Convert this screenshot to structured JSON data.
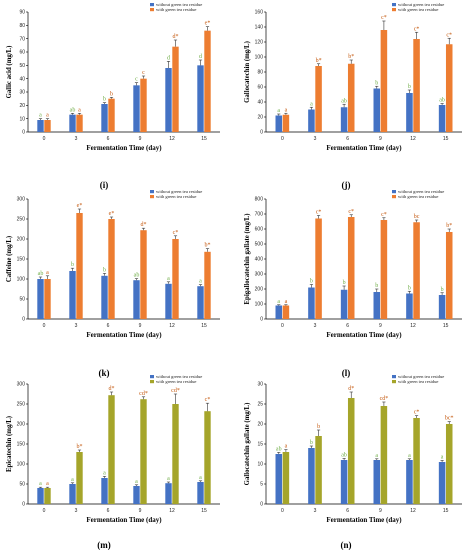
{
  "colors": {
    "without": "#4472c4",
    "with_i": "#ed7d31",
    "with_j": "#ed7d31",
    "with_k": "#ed7d31",
    "with_l": "#ed7d31",
    "with_m": "#a5a52a",
    "with_n": "#a5a52a",
    "axis": "#000000",
    "sig_without": "#70ad47",
    "sig_with": "#c55a11"
  },
  "legend": {
    "without": "without green tea residue",
    "with": "with green tea residue"
  },
  "chart_data": [
    {
      "id": "i",
      "panel_label": "(i)",
      "type": "bar",
      "xlabel": "Fermentation Time (day)",
      "ylabel": "Gallic acid (mg/L)",
      "categories": [
        "0",
        "3",
        "6",
        "9",
        "12",
        "15"
      ],
      "ylim": [
        0,
        90
      ],
      "yticks": [
        0,
        10,
        20,
        30,
        40,
        50,
        60,
        70,
        80,
        90
      ],
      "series": [
        {
          "name": "without green tea residue",
          "values": [
            9,
            13,
            21,
            35,
            48,
            50
          ],
          "errors": [
            1,
            1,
            1,
            2,
            5,
            4
          ],
          "labels": [
            "a",
            "ab",
            "b",
            "c",
            "d",
            "d"
          ]
        },
        {
          "name": "with green tea residue",
          "values": [
            9,
            13,
            25,
            40,
            64,
            76
          ],
          "errors": [
            1,
            1,
            1,
            2,
            5,
            3
          ],
          "labels": [
            "a",
            "a",
            "b",
            "c",
            "d*",
            "e*"
          ]
        }
      ]
    },
    {
      "id": "j",
      "panel_label": "(j)",
      "type": "bar",
      "xlabel": "Fermentation Time (day)",
      "ylabel": "Gallocatechin (mg/L)",
      "categories": [
        "0",
        "3",
        "6",
        "9",
        "12",
        "15"
      ],
      "ylim": [
        0,
        160
      ],
      "yticks": [
        0,
        20,
        40,
        60,
        80,
        100,
        120,
        140,
        160
      ],
      "series": [
        {
          "name": "without green tea residue",
          "values": [
            22,
            30,
            33,
            58,
            52,
            36
          ],
          "errors": [
            2,
            3,
            4,
            3,
            4,
            2
          ],
          "labels": [
            "a",
            "a",
            "ab",
            "b",
            "b",
            "ab"
          ]
        },
        {
          "name": "with green tea residue",
          "values": [
            23,
            88,
            91,
            136,
            124,
            117
          ],
          "errors": [
            2,
            3,
            5,
            12,
            9,
            8
          ],
          "labels": [
            "a",
            "b*",
            "b*",
            "c*",
            "c*",
            "c*"
          ]
        }
      ]
    },
    {
      "id": "k",
      "panel_label": "(k)",
      "type": "bar",
      "xlabel": "Fermentation Time (day)",
      "ylabel": "Caffeine (mg/L)",
      "categories": [
        "0",
        "3",
        "6",
        "9",
        "12",
        "15"
      ],
      "ylim": [
        0,
        300
      ],
      "yticks": [
        0,
        50,
        100,
        150,
        200,
        250,
        300
      ],
      "series": [
        {
          "name": "without green tea residue",
          "values": [
            100,
            120,
            108,
            97,
            88,
            82
          ],
          "errors": [
            5,
            7,
            6,
            4,
            5,
            4
          ],
          "labels": [
            "ab",
            "b",
            "b",
            "ab",
            "a",
            "a"
          ]
        },
        {
          "name": "with green tea residue",
          "values": [
            100,
            265,
            250,
            222,
            200,
            168
          ],
          "errors": [
            8,
            10,
            5,
            5,
            8,
            8
          ],
          "labels": [
            "a",
            "e*",
            "e*",
            "d*",
            "c*",
            "b*"
          ]
        }
      ]
    },
    {
      "id": "l",
      "panel_label": "(l)",
      "type": "bar",
      "xlabel": "Fermentation Time (day)",
      "ylabel": "Epigallocatechin gallate (mg/L)",
      "categories": [
        "0",
        "3",
        "6",
        "9",
        "12",
        "15"
      ],
      "ylim": [
        0,
        800
      ],
      "yticks": [
        0,
        100,
        200,
        300,
        400,
        500,
        600,
        700,
        800
      ],
      "series": [
        {
          "name": "without green tea residue",
          "values": [
            90,
            210,
            195,
            180,
            170,
            160
          ],
          "errors": [
            5,
            20,
            25,
            20,
            15,
            15
          ],
          "labels": [
            "a",
            "b",
            "b",
            "b",
            "b",
            "b"
          ]
        },
        {
          "name": "with green tea residue",
          "values": [
            90,
            670,
            680,
            660,
            645,
            580
          ],
          "errors": [
            5,
            20,
            15,
            15,
            15,
            20
          ],
          "labels": [
            "a",
            "c*",
            "c*",
            "c*",
            "bc",
            "b*"
          ]
        }
      ]
    },
    {
      "id": "m",
      "panel_label": "(m)",
      "type": "bar",
      "xlabel": "Fermentation Time (day)",
      "ylabel": "Epicatechin (mg/L)",
      "categories": [
        "0",
        "3",
        "6",
        "9",
        "12",
        "15"
      ],
      "ylim": [
        0,
        300
      ],
      "yticks": [
        0,
        50,
        100,
        150,
        200,
        250,
        300
      ],
      "series": [
        {
          "name": "without green tea residue",
          "values": [
            40,
            50,
            65,
            45,
            52,
            55
          ],
          "errors": [
            2,
            3,
            4,
            3,
            3,
            3
          ],
          "labels": [
            "a",
            "a",
            "a",
            "a",
            "a",
            "a"
          ]
        },
        {
          "name": "with green tea residue",
          "values": [
            40,
            130,
            272,
            262,
            250,
            232
          ],
          "errors": [
            2,
            5,
            8,
            6,
            25,
            20
          ],
          "labels": [
            "a",
            "b*",
            "d*",
            "cd*",
            "cd*",
            "c*"
          ]
        }
      ]
    },
    {
      "id": "n",
      "panel_label": "(n)",
      "type": "bar",
      "xlabel": "Fermentation Time (day)",
      "ylabel": "Gallocatechin gallate (mg/L)",
      "categories": [
        "0",
        "3",
        "6",
        "9",
        "12",
        "15"
      ],
      "ylim": [
        0,
        30
      ],
      "yticks": [
        0,
        5,
        10,
        15,
        20,
        25,
        30
      ],
      "series": [
        {
          "name": "without green tea residue",
          "values": [
            12.5,
            14,
            11,
            11,
            11,
            10.5
          ],
          "errors": [
            0.4,
            0.5,
            0.4,
            0.3,
            0.3,
            0.4
          ],
          "labels": [
            "ab",
            "b",
            "ab",
            "a",
            "a",
            "a"
          ]
        },
        {
          "name": "with green tea residue",
          "values": [
            13,
            17,
            26.5,
            24.5,
            21.5,
            20
          ],
          "errors": [
            0.6,
            1.5,
            1.5,
            1,
            0.6,
            0.6
          ],
          "labels": [
            "a",
            "b",
            "d*",
            "cd*",
            "c*",
            "bc*"
          ]
        }
      ]
    }
  ]
}
